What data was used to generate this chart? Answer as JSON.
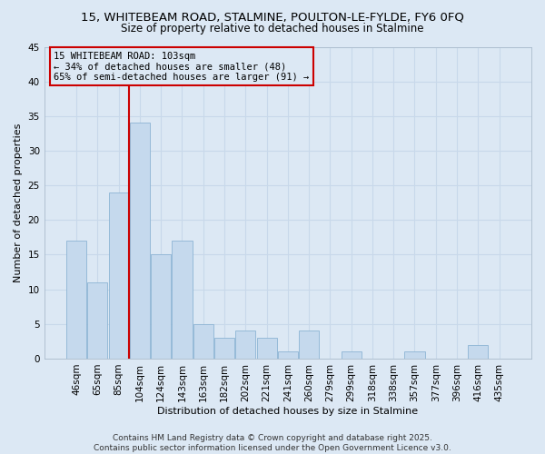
{
  "title_line1": "15, WHITEBEAM ROAD, STALMINE, POULTON-LE-FYLDE, FY6 0FQ",
  "title_line2": "Size of property relative to detached houses in Stalmine",
  "xlabel": "Distribution of detached houses by size in Stalmine",
  "ylabel": "Number of detached properties",
  "bar_labels": [
    "46sqm",
    "65sqm",
    "85sqm",
    "104sqm",
    "124sqm",
    "143sqm",
    "163sqm",
    "182sqm",
    "202sqm",
    "221sqm",
    "241sqm",
    "260sqm",
    "279sqm",
    "299sqm",
    "318sqm",
    "338sqm",
    "357sqm",
    "377sqm",
    "396sqm",
    "416sqm",
    "435sqm"
  ],
  "bar_values": [
    17,
    11,
    24,
    34,
    15,
    17,
    5,
    3,
    4,
    3,
    1,
    4,
    0,
    1,
    0,
    0,
    1,
    0,
    0,
    2,
    0
  ],
  "bar_color": "#c5d9ed",
  "bar_edge_color": "#8db4d4",
  "vline_x_index": 3,
  "vline_color": "#cc0000",
  "annotation_line1": "15 WHITEBEAM ROAD: 103sqm",
  "annotation_line2": "← 34% of detached houses are smaller (48)",
  "annotation_line3": "65% of semi-detached houses are larger (91) →",
  "annotation_box_color": "#cc0000",
  "ylim": [
    0,
    45
  ],
  "yticks": [
    0,
    5,
    10,
    15,
    20,
    25,
    30,
    35,
    40,
    45
  ],
  "grid_color": "#c8d8ea",
  "background_color": "#dce8f4",
  "footer_text": "Contains HM Land Registry data © Crown copyright and database right 2025.\nContains public sector information licensed under the Open Government Licence v3.0.",
  "title_fontsize": 9.5,
  "subtitle_fontsize": 8.5,
  "axis_label_fontsize": 8,
  "tick_fontsize": 7.5,
  "annotation_fontsize": 7.5,
  "footer_fontsize": 6.5
}
